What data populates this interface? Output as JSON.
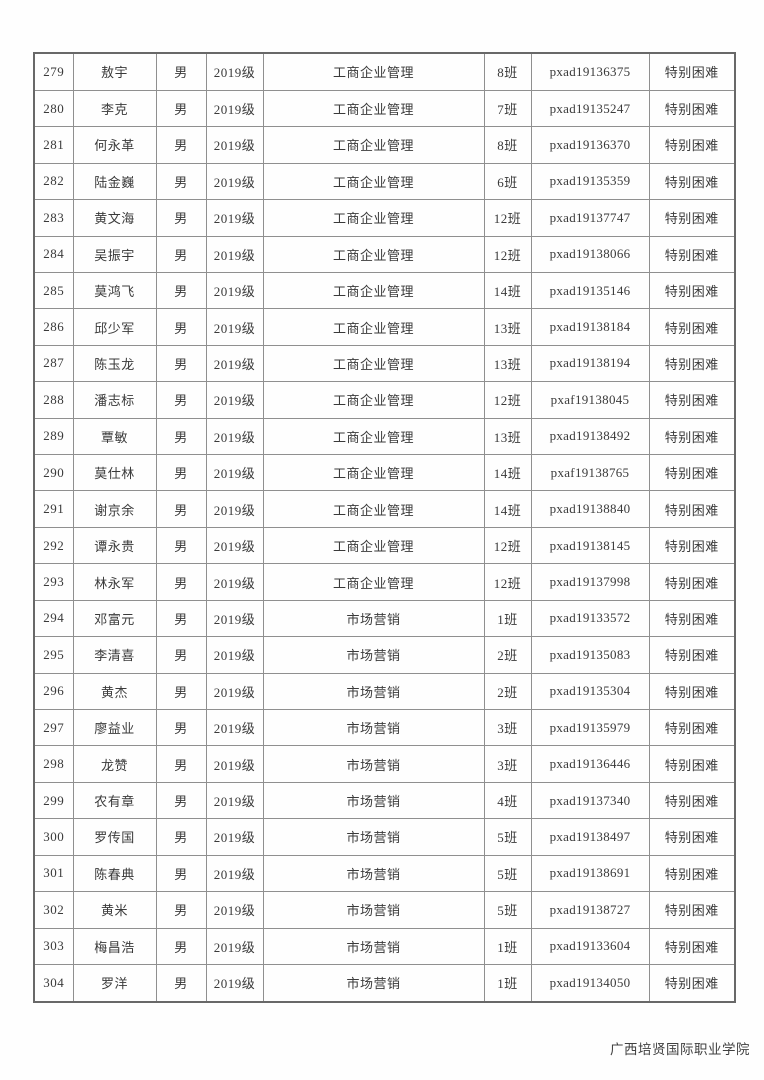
{
  "colors": {
    "page_background": "#fefefe",
    "border_outer": "#686868",
    "border_inner": "#8f8f8f",
    "text": "#3a3a3a"
  },
  "table": {
    "rows": [
      {
        "no": "279",
        "name": "敖宇",
        "gender": "男",
        "grade": "2019级",
        "major": "工商企业管理",
        "class": "8班",
        "id": "pxad19136375",
        "status": "特别困难"
      },
      {
        "no": "280",
        "name": "李克",
        "gender": "男",
        "grade": "2019级",
        "major": "工商企业管理",
        "class": "7班",
        "id": "pxad19135247",
        "status": "特别困难"
      },
      {
        "no": "281",
        "name": "何永革",
        "gender": "男",
        "grade": "2019级",
        "major": "工商企业管理",
        "class": "8班",
        "id": "pxad19136370",
        "status": "特别困难"
      },
      {
        "no": "282",
        "name": "陆金巍",
        "gender": "男",
        "grade": "2019级",
        "major": "工商企业管理",
        "class": "6班",
        "id": "pxad19135359",
        "status": "特别困难"
      },
      {
        "no": "283",
        "name": "黄文海",
        "gender": "男",
        "grade": "2019级",
        "major": "工商企业管理",
        "class": "12班",
        "id": "pxad19137747",
        "status": "特别困难"
      },
      {
        "no": "284",
        "name": "吴振宇",
        "gender": "男",
        "grade": "2019级",
        "major": "工商企业管理",
        "class": "12班",
        "id": "pxad19138066",
        "status": "特别困难"
      },
      {
        "no": "285",
        "name": "莫鸿飞",
        "gender": "男",
        "grade": "2019级",
        "major": "工商企业管理",
        "class": "14班",
        "id": "pxad19135146",
        "status": "特别困难"
      },
      {
        "no": "286",
        "name": "邱少军",
        "gender": "男",
        "grade": "2019级",
        "major": "工商企业管理",
        "class": "13班",
        "id": "pxad19138184",
        "status": "特别困难"
      },
      {
        "no": "287",
        "name": "陈玉龙",
        "gender": "男",
        "grade": "2019级",
        "major": "工商企业管理",
        "class": "13班",
        "id": "pxad19138194",
        "status": "特别困难"
      },
      {
        "no": "288",
        "name": "潘志标",
        "gender": "男",
        "grade": "2019级",
        "major": "工商企业管理",
        "class": "12班",
        "id": "pxaf19138045",
        "status": "特别困难"
      },
      {
        "no": "289",
        "name": "覃敏",
        "gender": "男",
        "grade": "2019级",
        "major": "工商企业管理",
        "class": "13班",
        "id": "pxad19138492",
        "status": "特别困难"
      },
      {
        "no": "290",
        "name": "莫仕林",
        "gender": "男",
        "grade": "2019级",
        "major": "工商企业管理",
        "class": "14班",
        "id": "pxaf19138765",
        "status": "特别困难"
      },
      {
        "no": "291",
        "name": "谢京余",
        "gender": "男",
        "grade": "2019级",
        "major": "工商企业管理",
        "class": "14班",
        "id": "pxad19138840",
        "status": "特别困难"
      },
      {
        "no": "292",
        "name": "谭永贵",
        "gender": "男",
        "grade": "2019级",
        "major": "工商企业管理",
        "class": "12班",
        "id": "pxad19138145",
        "status": "特别困难"
      },
      {
        "no": "293",
        "name": "林永军",
        "gender": "男",
        "grade": "2019级",
        "major": "工商企业管理",
        "class": "12班",
        "id": "pxad19137998",
        "status": "特别困难"
      },
      {
        "no": "294",
        "name": "邓富元",
        "gender": "男",
        "grade": "2019级",
        "major": "市场营销",
        "class": "1班",
        "id": "pxad19133572",
        "status": "特别困难"
      },
      {
        "no": "295",
        "name": "李清喜",
        "gender": "男",
        "grade": "2019级",
        "major": "市场营销",
        "class": "2班",
        "id": "pxad19135083",
        "status": "特别困难"
      },
      {
        "no": "296",
        "name": "黄杰",
        "gender": "男",
        "grade": "2019级",
        "major": "市场营销",
        "class": "2班",
        "id": "pxad19135304",
        "status": "特别困难"
      },
      {
        "no": "297",
        "name": "廖益业",
        "gender": "男",
        "grade": "2019级",
        "major": "市场营销",
        "class": "3班",
        "id": "pxad19135979",
        "status": "特别困难"
      },
      {
        "no": "298",
        "name": "龙赞",
        "gender": "男",
        "grade": "2019级",
        "major": "市场营销",
        "class": "3班",
        "id": "pxad19136446",
        "status": "特别困难"
      },
      {
        "no": "299",
        "name": "农有章",
        "gender": "男",
        "grade": "2019级",
        "major": "市场营销",
        "class": "4班",
        "id": "pxad19137340",
        "status": "特别困难"
      },
      {
        "no": "300",
        "name": "罗传国",
        "gender": "男",
        "grade": "2019级",
        "major": "市场营销",
        "class": "5班",
        "id": "pxad19138497",
        "status": "特别困难"
      },
      {
        "no": "301",
        "name": "陈春典",
        "gender": "男",
        "grade": "2019级",
        "major": "市场营销",
        "class": "5班",
        "id": "pxad19138691",
        "status": "特别困难"
      },
      {
        "no": "302",
        "name": "黄米",
        "gender": "男",
        "grade": "2019级",
        "major": "市场营销",
        "class": "5班",
        "id": "pxad19138727",
        "status": "特别困难"
      },
      {
        "no": "303",
        "name": "梅昌浩",
        "gender": "男",
        "grade": "2019级",
        "major": "市场营销",
        "class": "1班",
        "id": "pxad19133604",
        "status": "特别困难"
      },
      {
        "no": "304",
        "name": "罗洋",
        "gender": "男",
        "grade": "2019级",
        "major": "市场营销",
        "class": "1班",
        "id": "pxad19134050",
        "status": "特别困难"
      }
    ]
  },
  "footer": {
    "text": "广西培贤国际职业学院"
  }
}
